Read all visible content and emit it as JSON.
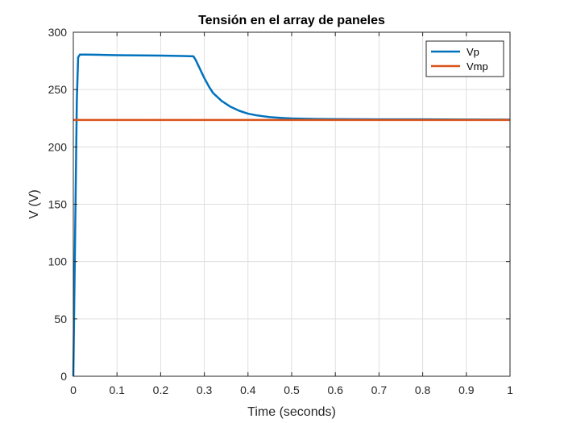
{
  "chart_data": {
    "type": "line",
    "title": "Tensión en el array de paneles",
    "xlabel": "Time (seconds)",
    "ylabel": "V (V)",
    "xlim": [
      0,
      1
    ],
    "ylim": [
      0,
      300
    ],
    "xticks": [
      0,
      0.1,
      0.2,
      0.3,
      0.4,
      0.5,
      0.6,
      0.7,
      0.8,
      0.9,
      1
    ],
    "xtick_labels": [
      "0",
      "0.1",
      "0.2",
      "0.3",
      "0.4",
      "0.5",
      "0.6",
      "0.7",
      "0.8",
      "0.9",
      "1"
    ],
    "yticks": [
      0,
      50,
      100,
      150,
      200,
      250,
      300
    ],
    "ytick_labels": [
      "0",
      "50",
      "100",
      "150",
      "200",
      "250",
      "300"
    ],
    "grid": true,
    "legend": "top-right",
    "series": [
      {
        "name": "Vp",
        "color": "#0072BD",
        "x": [
          0,
          0.002,
          0.005,
          0.008,
          0.011,
          0.015,
          0.03,
          0.06,
          0.1,
          0.15,
          0.2,
          0.25,
          0.275,
          0.28,
          0.29,
          0.3,
          0.31,
          0.32,
          0.34,
          0.36,
          0.38,
          0.4,
          0.42,
          0.45,
          0.48,
          0.5,
          0.55,
          0.6,
          0.65,
          0.7,
          0.8,
          0.9,
          1.0
        ],
        "y": [
          0,
          60,
          150,
          240,
          278,
          280.5,
          280.5,
          280.3,
          280.0,
          279.8,
          279.6,
          279.3,
          279.0,
          276.0,
          268.0,
          260.0,
          253.0,
          247.0,
          240.0,
          235.0,
          231.5,
          229.0,
          227.5,
          226.0,
          225.2,
          224.8,
          224.4,
          224.2,
          224.1,
          224.0,
          224.0,
          223.9,
          223.8
        ]
      },
      {
        "name": "Vmp",
        "color": "#D95319",
        "x": [
          0,
          1
        ],
        "y": [
          223.5,
          223.5
        ]
      }
    ]
  }
}
